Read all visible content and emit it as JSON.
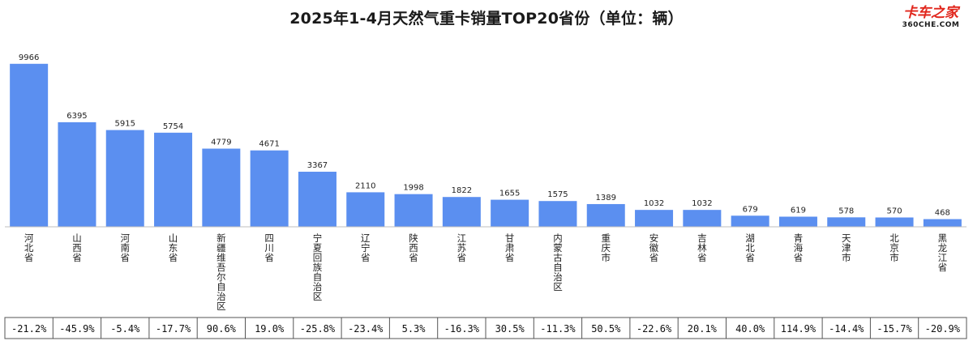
{
  "chart_data": {
    "type": "bar",
    "title": "2025年1-4月天然气重卡销量TOP20省份（单位：辆）",
    "xlabel": "",
    "ylabel": "",
    "ylim": [
      0,
      10500
    ],
    "grid": false,
    "legend": "none",
    "bar_color": "#5b8ff0",
    "categories": [
      "河北省",
      "山西省",
      "河南省",
      "山东省",
      "新疆维吾尔自治区",
      "四川省",
      "宁夏回族自治区",
      "辽宁省",
      "陕西省",
      "江苏省",
      "甘肃省",
      "内蒙古自治区",
      "重庆市",
      "安徽省",
      "吉林省",
      "湖北省",
      "青海省",
      "天津市",
      "北京市",
      "黑龙江省"
    ],
    "values": [
      9966,
      6395,
      5915,
      5754,
      4779,
      4671,
      3367,
      2110,
      1998,
      1822,
      1655,
      1575,
      1389,
      1032,
      1032,
      679,
      619,
      578,
      570,
      468
    ],
    "yoy_change": [
      "-21.2%",
      "-45.9%",
      "-5.4%",
      "-17.7%",
      "90.6%",
      "19.0%",
      "-25.8%",
      "-23.4%",
      "5.3%",
      "-16.3%",
      "30.5%",
      "-11.3%",
      "50.5%",
      "-22.6%",
      "20.1%",
      "40.0%",
      "114.9%",
      "-14.4%",
      "-15.7%",
      "-20.9%"
    ]
  },
  "logo": {
    "main": "卡车之家",
    "sub": "360CHE.COM"
  }
}
